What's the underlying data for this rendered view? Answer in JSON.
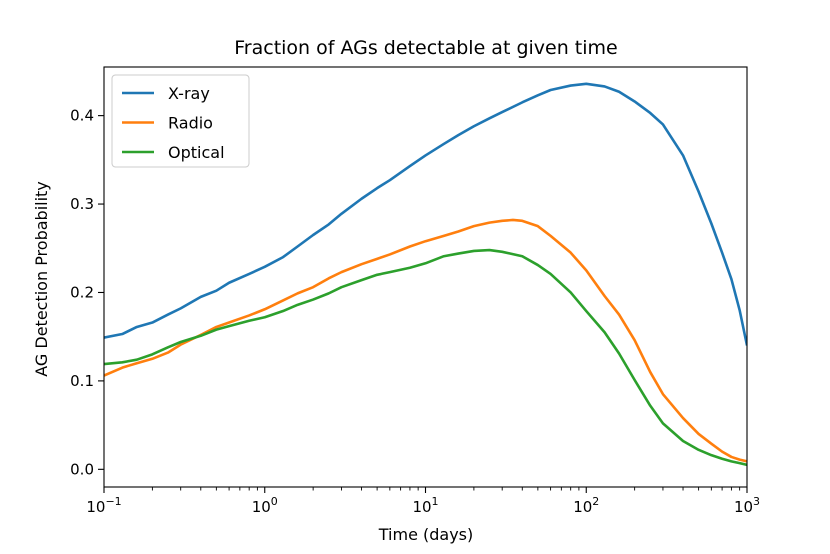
{
  "chart_data": {
    "type": "line",
    "title": "Fraction of AGs detectable at given time",
    "xlabel": "Time (days)",
    "ylabel": "AG Detection Probability",
    "xscale": "log",
    "xlim": [
      0.1,
      1000
    ],
    "ylim": [
      -0.02,
      0.455
    ],
    "x_ticks": [
      {
        "value": 0.1,
        "base": "10",
        "exp": "−1"
      },
      {
        "value": 1,
        "base": "10",
        "exp": "0"
      },
      {
        "value": 10,
        "base": "10",
        "exp": "1"
      },
      {
        "value": 100,
        "base": "10",
        "exp": "2"
      },
      {
        "value": 1000,
        "base": "10",
        "exp": "3"
      }
    ],
    "y_ticks": [
      {
        "value": 0.0,
        "label": "0.0"
      },
      {
        "value": 0.1,
        "label": "0.1"
      },
      {
        "value": 0.2,
        "label": "0.2"
      },
      {
        "value": 0.3,
        "label": "0.3"
      },
      {
        "value": 0.4,
        "label": "0.4"
      }
    ],
    "grid": false,
    "legend_position": "top-left",
    "series": [
      {
        "name": "X-ray",
        "color": "#1f77b4",
        "points": [
          [
            0.1,
            0.149
          ],
          [
            0.13,
            0.153
          ],
          [
            0.16,
            0.161
          ],
          [
            0.2,
            0.166
          ],
          [
            0.25,
            0.175
          ],
          [
            0.3,
            0.182
          ],
          [
            0.4,
            0.195
          ],
          [
            0.5,
            0.202
          ],
          [
            0.6,
            0.211
          ],
          [
            0.8,
            0.221
          ],
          [
            1.0,
            0.229
          ],
          [
            1.3,
            0.24
          ],
          [
            1.6,
            0.252
          ],
          [
            2.0,
            0.265
          ],
          [
            2.5,
            0.277
          ],
          [
            3.0,
            0.289
          ],
          [
            4.0,
            0.306
          ],
          [
            5.0,
            0.318
          ],
          [
            6.0,
            0.327
          ],
          [
            8.0,
            0.343
          ],
          [
            10,
            0.355
          ],
          [
            13,
            0.368
          ],
          [
            16,
            0.378
          ],
          [
            20,
            0.388
          ],
          [
            25,
            0.397
          ],
          [
            30,
            0.404
          ],
          [
            40,
            0.415
          ],
          [
            50,
            0.423
          ],
          [
            60,
            0.429
          ],
          [
            80,
            0.434
          ],
          [
            100,
            0.436
          ],
          [
            130,
            0.433
          ],
          [
            160,
            0.427
          ],
          [
            200,
            0.416
          ],
          [
            250,
            0.403
          ],
          [
            300,
            0.39
          ],
          [
            400,
            0.355
          ],
          [
            500,
            0.314
          ],
          [
            600,
            0.278
          ],
          [
            700,
            0.245
          ],
          [
            800,
            0.215
          ],
          [
            900,
            0.18
          ],
          [
            1000,
            0.14
          ]
        ]
      },
      {
        "name": "Radio",
        "color": "#ff7f0e",
        "points": [
          [
            0.1,
            0.106
          ],
          [
            0.13,
            0.115
          ],
          [
            0.16,
            0.12
          ],
          [
            0.2,
            0.125
          ],
          [
            0.25,
            0.132
          ],
          [
            0.3,
            0.141
          ],
          [
            0.4,
            0.152
          ],
          [
            0.5,
            0.161
          ],
          [
            0.6,
            0.166
          ],
          [
            0.8,
            0.174
          ],
          [
            1.0,
            0.181
          ],
          [
            1.3,
            0.191
          ],
          [
            1.6,
            0.199
          ],
          [
            2.0,
            0.206
          ],
          [
            2.5,
            0.216
          ],
          [
            3.0,
            0.223
          ],
          [
            4.0,
            0.232
          ],
          [
            5.0,
            0.238
          ],
          [
            6.0,
            0.243
          ],
          [
            8.0,
            0.252
          ],
          [
            10,
            0.258
          ],
          [
            13,
            0.264
          ],
          [
            16,
            0.269
          ],
          [
            20,
            0.275
          ],
          [
            25,
            0.279
          ],
          [
            30,
            0.281
          ],
          [
            35,
            0.282
          ],
          [
            40,
            0.281
          ],
          [
            50,
            0.275
          ],
          [
            60,
            0.264
          ],
          [
            80,
            0.245
          ],
          [
            100,
            0.225
          ],
          [
            130,
            0.196
          ],
          [
            160,
            0.175
          ],
          [
            200,
            0.146
          ],
          [
            250,
            0.11
          ],
          [
            300,
            0.085
          ],
          [
            400,
            0.058
          ],
          [
            500,
            0.04
          ],
          [
            600,
            0.029
          ],
          [
            700,
            0.02
          ],
          [
            800,
            0.014
          ],
          [
            900,
            0.011
          ],
          [
            1000,
            0.009
          ]
        ]
      },
      {
        "name": "Optical",
        "color": "#2ca02c",
        "points": [
          [
            0.1,
            0.119
          ],
          [
            0.13,
            0.121
          ],
          [
            0.16,
            0.124
          ],
          [
            0.2,
            0.13
          ],
          [
            0.25,
            0.138
          ],
          [
            0.3,
            0.144
          ],
          [
            0.4,
            0.151
          ],
          [
            0.5,
            0.158
          ],
          [
            0.6,
            0.162
          ],
          [
            0.8,
            0.168
          ],
          [
            1.0,
            0.172
          ],
          [
            1.3,
            0.179
          ],
          [
            1.6,
            0.186
          ],
          [
            2.0,
            0.192
          ],
          [
            2.5,
            0.199
          ],
          [
            3.0,
            0.206
          ],
          [
            4.0,
            0.214
          ],
          [
            5.0,
            0.22
          ],
          [
            6.0,
            0.223
          ],
          [
            8.0,
            0.228
          ],
          [
            10,
            0.233
          ],
          [
            13,
            0.241
          ],
          [
            16,
            0.244
          ],
          [
            20,
            0.247
          ],
          [
            25,
            0.248
          ],
          [
            30,
            0.246
          ],
          [
            40,
            0.241
          ],
          [
            50,
            0.231
          ],
          [
            60,
            0.221
          ],
          [
            80,
            0.2
          ],
          [
            100,
            0.179
          ],
          [
            130,
            0.155
          ],
          [
            160,
            0.131
          ],
          [
            200,
            0.101
          ],
          [
            250,
            0.072
          ],
          [
            300,
            0.052
          ],
          [
            400,
            0.032
          ],
          [
            500,
            0.022
          ],
          [
            600,
            0.016
          ],
          [
            700,
            0.012
          ],
          [
            800,
            0.009
          ],
          [
            900,
            0.007
          ],
          [
            1000,
            0.005
          ]
        ]
      }
    ]
  }
}
